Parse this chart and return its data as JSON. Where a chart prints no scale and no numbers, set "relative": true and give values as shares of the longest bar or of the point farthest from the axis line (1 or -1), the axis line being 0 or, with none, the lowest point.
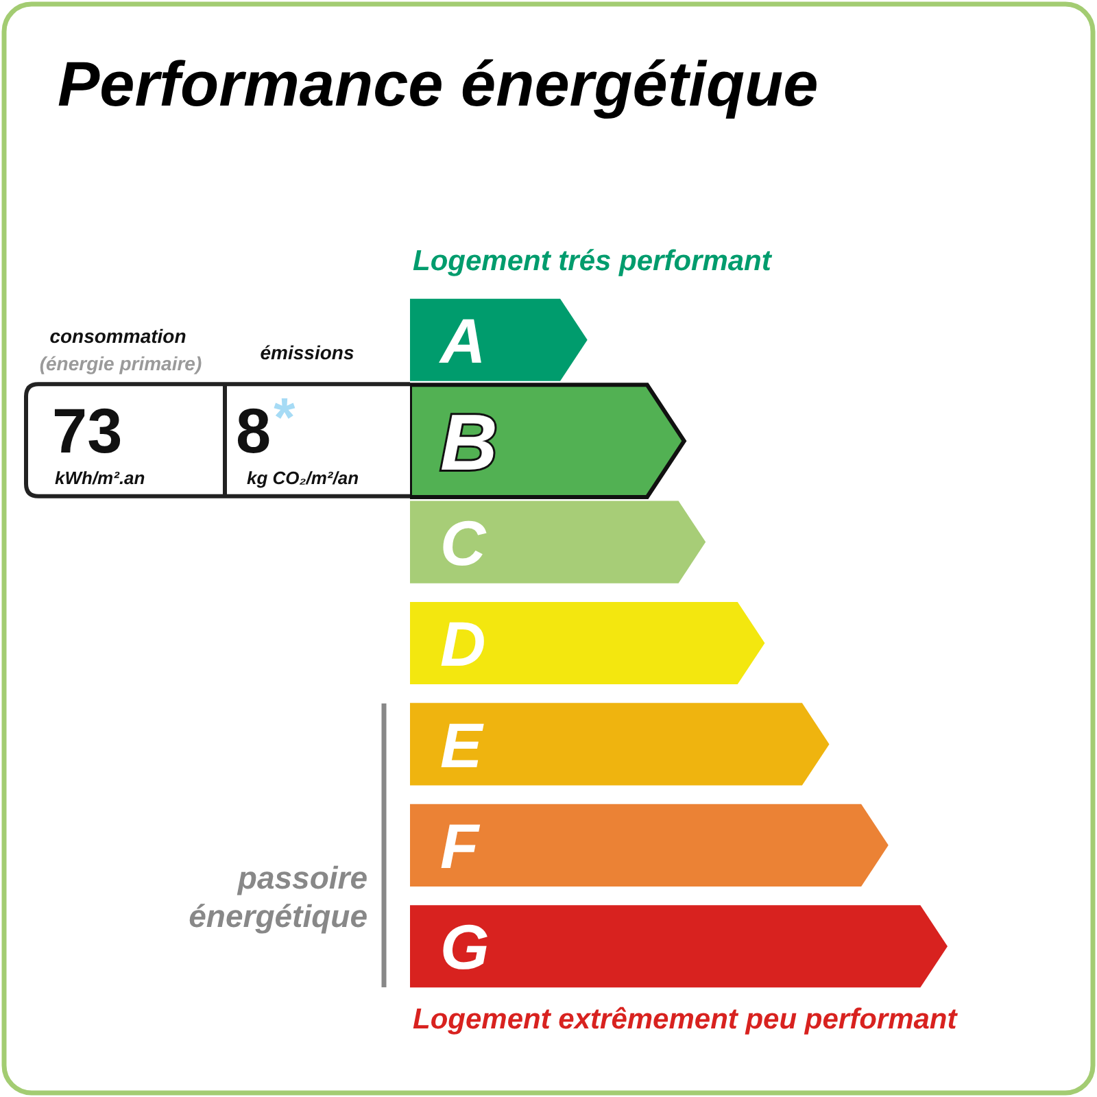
{
  "chart_data": {
    "type": "bar",
    "orientation": "horizontal",
    "relative": true,
    "title": "Performance énergétique",
    "categories": [
      "A",
      "B",
      "C",
      "D",
      "E",
      "F",
      "G"
    ],
    "values": [
      0.33,
      0.51,
      0.55,
      0.66,
      0.78,
      0.89,
      1
    ],
    "colors": [
      "#009c6d",
      "#52b153",
      "#a7cd77",
      "#f3e70f",
      "#efb40f",
      "#eb8235",
      "#d8221f"
    ],
    "annotations": [
      "Logement trés performant",
      "Logement extrêmement peu performant",
      "passoire énergétique",
      "consommation",
      "(énergie primaire)",
      "émissions",
      "73",
      "8",
      "*",
      "kWh/m².an",
      "kg CO₂/m²/an"
    ]
  }
}
